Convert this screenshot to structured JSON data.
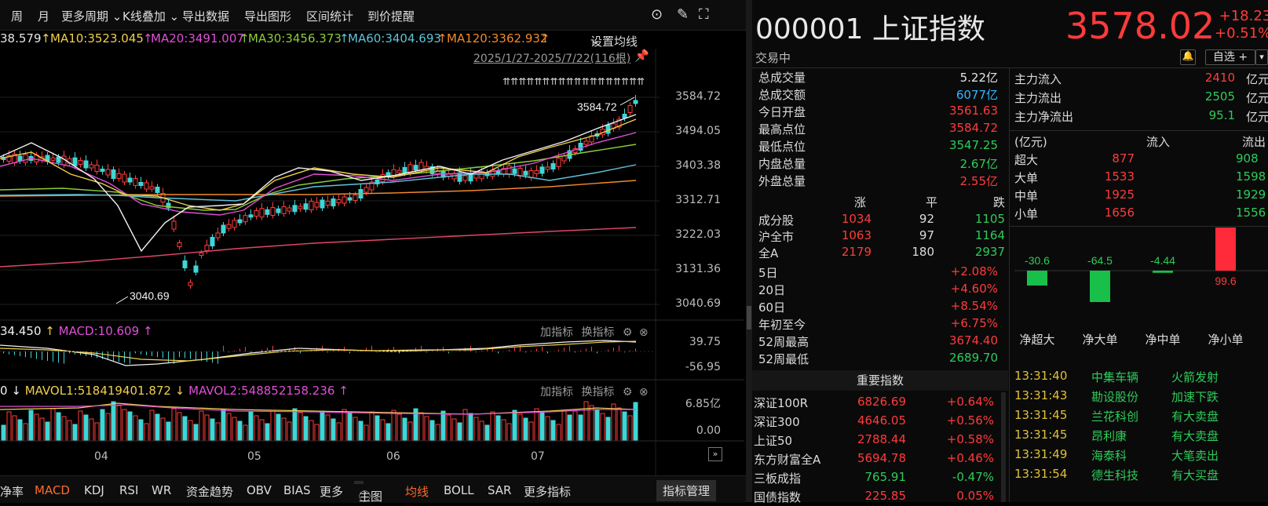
{
  "toolbar": {
    "items": [
      "周",
      "月",
      "更多周期",
      "K线叠加",
      "导出数据",
      "导出图形",
      "区间统计",
      "到价提醒"
    ]
  },
  "ma_legend": {
    "ma5": "38.579",
    "ma10": "MA10:3523.045",
    "ma20": "MA20:3491.007",
    "ma30": "MA30:3456.373",
    "ma60": "MA60:3404.693",
    "ma120": "MA120:3362.932",
    "settings": "设置均线"
  },
  "range_label": "2025/1/27-2025/7/22(116根)",
  "price_axis": [
    "3584.72",
    "3494.05",
    "3403.38",
    "3312.71",
    "3222.03",
    "3131.36",
    "3040.69"
  ],
  "annotations": {
    "high": "3584.72",
    "low": "3040.69"
  },
  "macd_legend": {
    "dif": "34.450",
    "macd": "MACD:10.609",
    "add": "加指标",
    "switch": "换指标"
  },
  "macd_axis": [
    "39.75",
    "-56.95"
  ],
  "vol_legend": {
    "prefix": "0",
    "mavol1": "MAVOL1:518419401.872",
    "mavol2": "MAVOL2:548852158.236",
    "add": "加指标",
    "switch": "换指标"
  },
  "vol_axis": [
    "6.85亿",
    "0.00"
  ],
  "x_months": [
    "04",
    "05",
    "06",
    "07"
  ],
  "bottom_tabs": [
    "净率",
    "MACD",
    "KDJ",
    "RSI",
    "WR",
    "资金趋势",
    "OBV",
    "BIAS",
    "更多",
    "主图",
    "均线",
    "BOLL",
    "SAR",
    "更多指标",
    "指标管理"
  ],
  "stock": {
    "code_name": "000001 上证指数",
    "price": "3578.02",
    "change": "+18.23",
    "change_pct": "+0.51%",
    "status": "交易中",
    "watch_btn": "自选 +"
  },
  "stats": [
    {
      "k": "总成交量",
      "v": "5.22亿",
      "c": "white"
    },
    {
      "k": "总成交额",
      "v": "6077亿",
      "c": "cyan"
    },
    {
      "k": "今日开盘",
      "v": "3561.63",
      "c": "red"
    },
    {
      "k": "最高点位",
      "v": "3584.72",
      "c": "red"
    },
    {
      "k": "最低点位",
      "v": "3547.25",
      "c": "green"
    },
    {
      "k": "内盘总量",
      "v": "2.67亿",
      "c": "green"
    },
    {
      "k": "外盘总量",
      "v": "2.55亿",
      "c": "red"
    }
  ],
  "breadth": {
    "headers": [
      "涨",
      "平",
      "跌"
    ],
    "rows": [
      {
        "k": "成分股",
        "up": "1034",
        "flat": "92",
        "down": "1105"
      },
      {
        "k": "沪全市",
        "up": "1063",
        "flat": "97",
        "down": "1164"
      },
      {
        "k": "全A",
        "up": "2179",
        "flat": "180",
        "down": "2937"
      }
    ]
  },
  "periods": [
    {
      "k": "5日",
      "v": "+2.08%",
      "c": "red"
    },
    {
      "k": "20日",
      "v": "+4.60%",
      "c": "red"
    },
    {
      "k": "60日",
      "v": "+8.54%",
      "c": "red"
    },
    {
      "k": "年初至今",
      "v": "+6.75%",
      "c": "red"
    },
    {
      "k": "52周最高",
      "v": "3674.40",
      "c": "red"
    },
    {
      "k": "52周最低",
      "v": "2689.70",
      "c": "green"
    }
  ],
  "flow": {
    "summary": [
      {
        "k": "主力流入",
        "v": "2410",
        "u": "亿元",
        "c": "red"
      },
      {
        "k": "主力流出",
        "v": "2505",
        "u": "亿元",
        "c": "green"
      },
      {
        "k": "主力净流出",
        "v": "95.1",
        "u": "亿元",
        "c": "green"
      }
    ],
    "table_headers": [
      "(亿元)",
      "流入",
      "流出"
    ],
    "rows": [
      {
        "k": "超大",
        "in": "877",
        "out": "908"
      },
      {
        "k": "大单",
        "in": "1533",
        "out": "1598"
      },
      {
        "k": "中单",
        "in": "1925",
        "out": "1929"
      },
      {
        "k": "小单",
        "in": "1656",
        "out": "1556"
      }
    ],
    "net": [
      {
        "label": "净超大",
        "value": -30.6,
        "text": "-30.6"
      },
      {
        "label": "净大单",
        "value": -64.5,
        "text": "-64.5"
      },
      {
        "label": "净中单",
        "value": -4.44,
        "text": "-4.44"
      },
      {
        "label": "净小单",
        "value": 99.6,
        "text": "99.6"
      }
    ]
  },
  "index_section_title": "重要指数",
  "indices": [
    {
      "name": "深证100R",
      "price": "6826.69",
      "pct": "+0.64%",
      "c": "red"
    },
    {
      "name": "深证300",
      "price": "4646.05",
      "pct": "+0.56%",
      "c": "red"
    },
    {
      "name": "上证50",
      "price": "2788.44",
      "pct": "+0.58%",
      "c": "red"
    },
    {
      "name": "东方财富全A",
      "price": "5694.78",
      "pct": "+0.46%",
      "c": "red"
    },
    {
      "name": "三板成指",
      "price": "765.91",
      "pct": "-0.47%",
      "c": "green"
    },
    {
      "name": "国债指数",
      "price": "225.85",
      "pct": "0.05%",
      "c": "red"
    }
  ],
  "ticks": [
    {
      "time": "13:31:40",
      "name": "中集车辆",
      "event": "火箭发射"
    },
    {
      "time": "13:31:43",
      "name": "勘设股份",
      "event": "加速下跌"
    },
    {
      "time": "13:31:45",
      "name": "兰花科创",
      "event": "有大卖盘"
    },
    {
      "time": "13:31:45",
      "name": "昂利康",
      "event": "有大卖盘"
    },
    {
      "time": "13:31:49",
      "name": "海泰科",
      "event": "大笔卖出"
    },
    {
      "time": "13:31:54",
      "name": "德生科技",
      "event": "有大买盘"
    }
  ]
}
